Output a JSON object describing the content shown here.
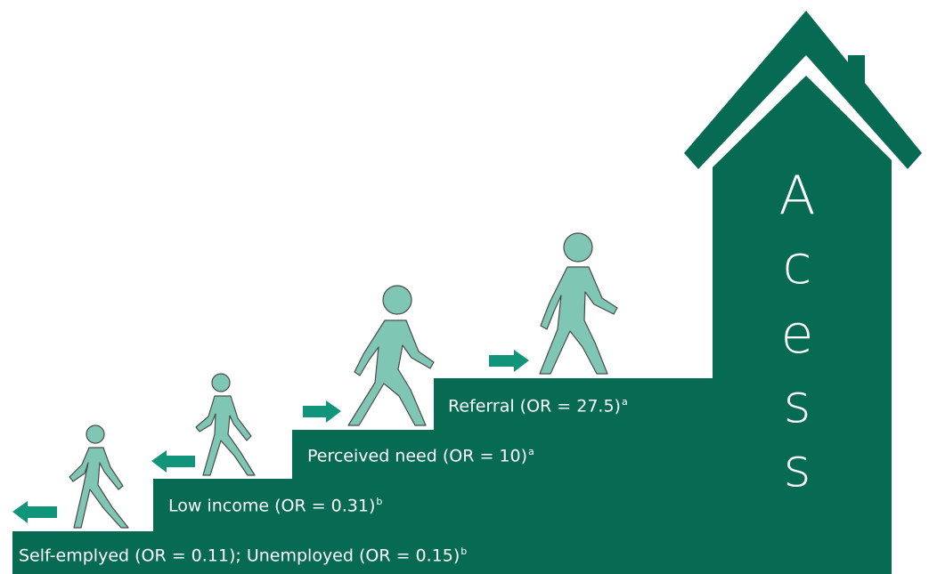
{
  "colors": {
    "stairs": "#076b54",
    "arrow": "#11957a",
    "figure": "#7fc7b4",
    "figure_outline": "#4a4a4a",
    "text": "#ffffff"
  },
  "house": {
    "letters": [
      "A",
      "c",
      "e",
      "s",
      "s"
    ]
  },
  "steps": [
    {
      "text": "Self-emplyed (OR = 0.11); Unemployed (OR = 0.15)",
      "sup": "b",
      "arrow": "left"
    },
    {
      "text": "Low income (OR = 0.31)",
      "sup": "b",
      "arrow": "left"
    },
    {
      "text": "Perceived need (OR = 10)",
      "sup": "a",
      "arrow": "right"
    },
    {
      "text": "Referral (OR = 27.5)",
      "sup": "a",
      "arrow": "right"
    }
  ],
  "icons": [
    "walking-person-icon",
    "arrow-left-icon",
    "arrow-right-icon",
    "house-roof-icon"
  ]
}
